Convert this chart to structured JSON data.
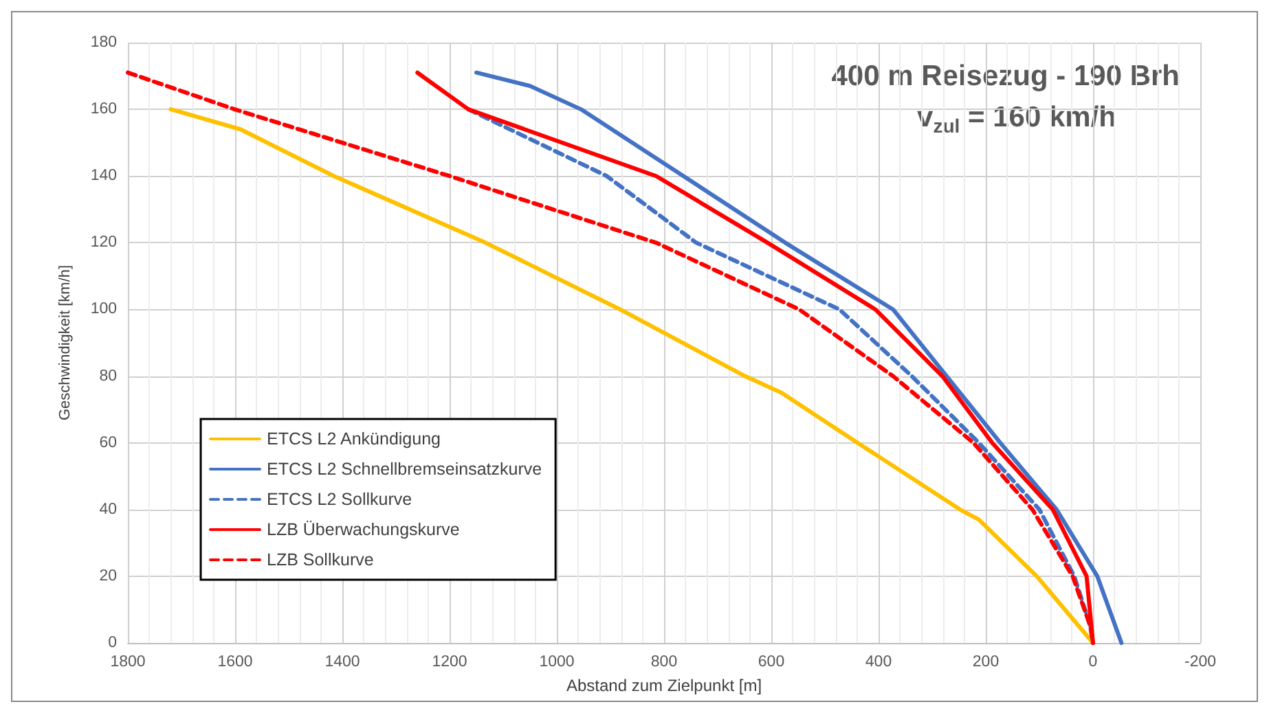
{
  "chart_data": {
    "type": "line",
    "xlabel": "Abstand zum Zielpunkt [m]",
    "ylabel": "Geschwindigkeit [km/h]",
    "annotations": [
      "400 m Reisezug - 190 Brh",
      "v$_{zul}$ = 160 km/h"
    ],
    "xlim": [
      1800,
      -200
    ],
    "xticks": [
      1800,
      1600,
      1400,
      1200,
      1000,
      800,
      600,
      400,
      200,
      0,
      -200
    ],
    "ylim": [
      0,
      180
    ],
    "yticks": [
      0,
      20,
      40,
      60,
      80,
      100,
      120,
      140,
      160,
      180
    ],
    "grid": true,
    "legend": "bottom left",
    "marker": "none",
    "series": [
      {
        "name": "ETCS L2 Ankündigung",
        "color": "#ffc000",
        "line_style": "solid",
        "x": [
          1720,
          1590,
          1416,
          1133,
          882,
          649,
          581,
          439,
          248,
          213,
          105,
          0
        ],
        "values": [
          160,
          154,
          140,
          120,
          100,
          80,
          75,
          60,
          40,
          37,
          20,
          0
        ]
      },
      {
        "name": "ETCS L2 Schnellbremseinsatzkurve",
        "color": "#4472c4",
        "line_style": "solid",
        "x": [
          1150,
          1050,
          955,
          764,
          574,
          373,
          273,
          173,
          68,
          -8,
          -53
        ],
        "values": [
          171,
          167,
          160,
          140,
          120,
          100,
          80,
          60,
          40,
          20,
          0
        ]
      },
      {
        "name": "ETCS L2 Sollkurve",
        "color": "#4472c4",
        "line_style": "dashed",
        "x": [
          1165,
          907,
          740,
          473,
          338,
          213,
          100,
          35,
          5,
          0
        ],
        "values": [
          160,
          140,
          120,
          100,
          80,
          60,
          40,
          20,
          5,
          0
        ]
      },
      {
        "name": "LZB Überwachungskurve",
        "color": "#ff0000",
        "line_style": "solid",
        "x": [
          1260,
          1165,
          815,
          607,
          406,
          281,
          188,
          75,
          12,
          0
        ],
        "values": [
          171,
          160,
          140,
          120,
          100,
          80,
          60,
          40,
          20,
          0
        ]
      },
      {
        "name": "LZB Sollkurve",
        "color": "#ff0000",
        "line_style": "dashed",
        "x": [
          1800,
          1601,
          1200,
          815,
          548,
          373,
          223,
          113,
          38,
          5,
          0
        ],
        "values": [
          171,
          160,
          140,
          120,
          100,
          80,
          60,
          40,
          20,
          5,
          0
        ]
      }
    ]
  }
}
